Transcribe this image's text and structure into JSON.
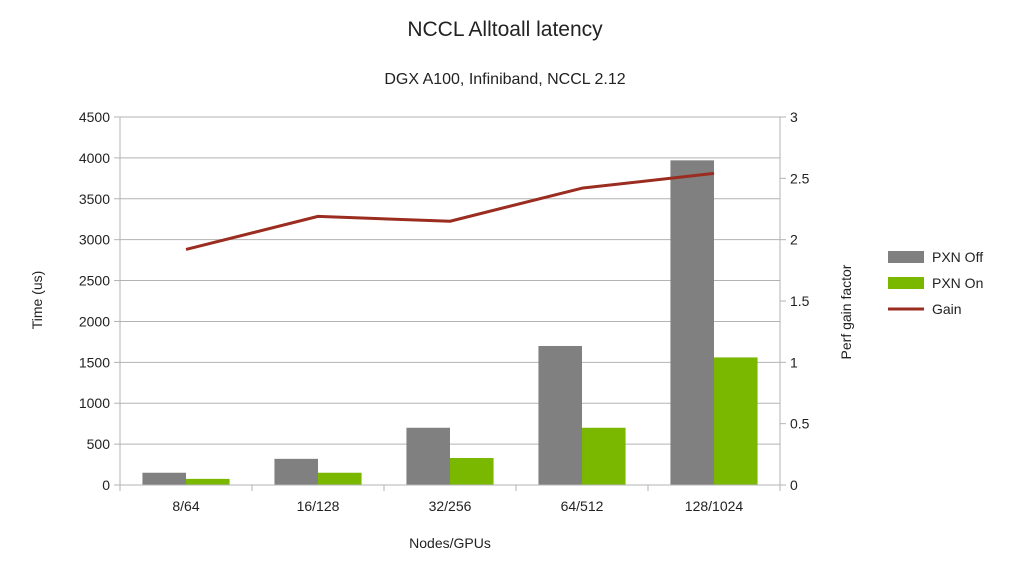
{
  "chart_data": {
    "type": "bar",
    "title": "NCCL Alltoall latency",
    "subtitle": "DGX A100, Infiniband, NCCL 2.12",
    "xlabel": "Nodes/GPUs",
    "ylabel": "Time (us)",
    "y2label": "Perf gain factor",
    "categories": [
      "8/64",
      "16/128",
      "32/256",
      "64/512",
      "128/1024"
    ],
    "ylim": [
      0,
      4500
    ],
    "yticks": [
      "0",
      "500",
      "1000",
      "1500",
      "2000",
      "2500",
      "3000",
      "3500",
      "4000",
      "4500"
    ],
    "y2lim": [
      0,
      3
    ],
    "y2ticks": [
      "0",
      "0.5",
      "1",
      "1.5",
      "2",
      "2.5",
      "3"
    ],
    "grid": true,
    "legend_position": "right",
    "series": [
      {
        "name": "PXN Off",
        "type": "bar",
        "axis": "left",
        "color": "#808080",
        "values": [
          150,
          320,
          700,
          1700,
          3970
        ]
      },
      {
        "name": "PXN On",
        "type": "bar",
        "axis": "left",
        "color": "#7ab800",
        "values": [
          75,
          150,
          330,
          700,
          1560
        ]
      },
      {
        "name": "Gain",
        "type": "line",
        "axis": "right",
        "color": "#9b2d20",
        "values": [
          1.92,
          2.19,
          2.15,
          2.42,
          2.54
        ]
      }
    ]
  }
}
